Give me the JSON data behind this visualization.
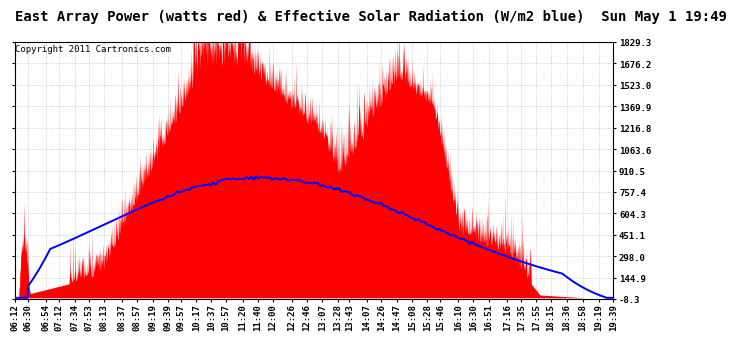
{
  "title": "East Array Power (watts red) & Effective Solar Radiation (W/m2 blue)  Sun May 1 19:49",
  "copyright": "Copyright 2011 Cartronics.com",
  "ymin": -8.3,
  "ymax": 1829.3,
  "yticks": [
    1829.3,
    1676.2,
    1523.0,
    1369.9,
    1216.8,
    1063.6,
    910.5,
    757.4,
    604.3,
    451.1,
    298.0,
    144.9,
    -8.3
  ],
  "x_labels": [
    "06:12",
    "06:30",
    "06:54",
    "07:12",
    "07:34",
    "07:53",
    "08:13",
    "08:37",
    "08:57",
    "09:19",
    "09:39",
    "09:57",
    "10:17",
    "10:37",
    "10:57",
    "11:20",
    "11:40",
    "12:00",
    "12:26",
    "12:46",
    "13:07",
    "13:28",
    "13:43",
    "14:07",
    "14:26",
    "14:47",
    "15:08",
    "15:28",
    "15:46",
    "16:10",
    "16:30",
    "16:51",
    "17:16",
    "17:35",
    "17:55",
    "18:15",
    "18:36",
    "18:58",
    "19:19",
    "19:39"
  ],
  "background_color": "#ffffff",
  "grid_color": "#aaaaaa",
  "red_fill_color": "#ff0000",
  "blue_line_color": "#0000ff",
  "title_fontsize": 10,
  "copyright_fontsize": 6.5,
  "tick_fontsize": 6.5
}
